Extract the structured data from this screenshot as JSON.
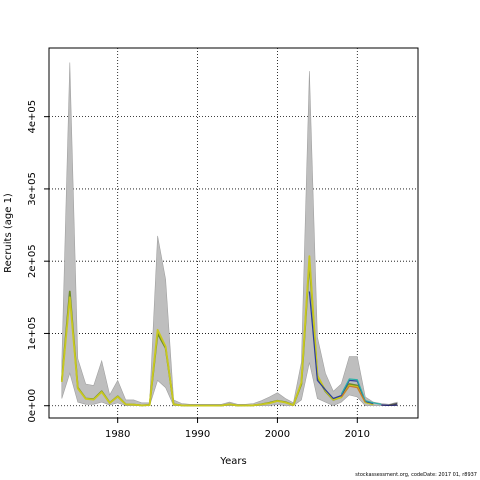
{
  "chart_data": {
    "type": "line",
    "xlabel": "Years",
    "ylabel": "Recruits (age 1)",
    "xlim": [
      1971.4,
      2017.6
    ],
    "ylim": [
      -17000,
      495000
    ],
    "xticks": [
      1980,
      1990,
      2000,
      2010
    ],
    "yticks": [
      0,
      100000,
      200000,
      300000,
      400000
    ],
    "ytick_labels": [
      "0e+00",
      "1e+05",
      "2e+05",
      "3e+05",
      "4e+05"
    ],
    "grid": "dotted",
    "colors": {
      "band": "#bebebe",
      "band_edge": "#a0a0a0",
      "series_blue": "#2a3c9c",
      "series_teal": "#2ab0a8",
      "series_yellow": "#c8c81e",
      "series_olive": "#6e8c28",
      "series_orange": "#c87832",
      "series_darkblue": "#1a1a6e",
      "series_gray": "#505050"
    },
    "band": {
      "x": [
        1973,
        1974,
        1975,
        1976,
        1977,
        1978,
        1979,
        1980,
        1981,
        1982,
        1983,
        1984,
        1985,
        1986,
        1987,
        1988,
        1989,
        1990,
        1991,
        1992,
        1993,
        1994,
        1995,
        1996,
        1997,
        1998,
        1999,
        2000,
        2001,
        2002,
        2003,
        2004,
        2005,
        2006,
        2007,
        2008,
        2009,
        2010,
        2011,
        2012,
        2013,
        2014,
        2015
      ],
      "lower": [
        10000,
        45000,
        5000,
        2000,
        2000,
        5000,
        1000,
        4000,
        0,
        0,
        0,
        0,
        35000,
        25000,
        0,
        0,
        0,
        0,
        0,
        0,
        0,
        0,
        0,
        0,
        0,
        0,
        0,
        2000,
        0,
        0,
        8000,
        60000,
        10000,
        5000,
        0,
        5000,
        15000,
        12000,
        0,
        0,
        0,
        0,
        0
      ],
      "upper": [
        60000,
        475000,
        65000,
        30000,
        28000,
        62000,
        15000,
        35000,
        8000,
        8000,
        4000,
        4000,
        235000,
        175000,
        8000,
        3000,
        2000,
        2000,
        2000,
        2000,
        2000,
        5000,
        2000,
        2000,
        3000,
        7000,
        12000,
        18000,
        10000,
        4000,
        60000,
        463000,
        95000,
        45000,
        20000,
        30000,
        68000,
        68000,
        12000,
        5000,
        3000,
        2000,
        5000
      ]
    },
    "series": [
      {
        "color_key": "series_olive",
        "x": [
          1973,
          1974,
          1975,
          1976,
          1977,
          1978,
          1979,
          1980,
          1981,
          1982,
          1983,
          1984,
          1985,
          1986,
          1987,
          1988,
          1989,
          1990,
          1991,
          1992,
          1993,
          1994,
          1995,
          1996,
          1997,
          1998,
          1999,
          2000,
          2001,
          2002,
          2003,
          2004,
          2005,
          2006,
          2007,
          2008,
          2009,
          2010,
          2011,
          2012
        ],
        "values": [
          35000,
          158000,
          25000,
          10000,
          9000,
          20000,
          4000,
          13000,
          2000,
          1500,
          500,
          1000,
          100000,
          80000,
          2000,
          500,
          300,
          200,
          200,
          200,
          300,
          2000,
          300,
          400,
          600,
          2000,
          4000,
          7000,
          5000,
          1000,
          30000,
          200000,
          40000,
          20000,
          8000,
          12000,
          30000,
          28000,
          5000,
          2000
        ]
      },
      {
        "color_key": "series_yellow",
        "x": [
          1973,
          1974,
          1975,
          1976,
          1977,
          1978,
          1979,
          1980,
          1981,
          1982,
          1983,
          1984,
          1985,
          1986,
          1987,
          1988,
          1989,
          1990,
          1991,
          1992,
          1993,
          1994,
          1995,
          1996,
          1997,
          1998,
          1999,
          2000,
          2001,
          2002,
          2003,
          2004,
          2005,
          2006,
          2007,
          2008,
          2009,
          2010,
          2011,
          2012
        ],
        "values": [
          33000,
          150000,
          24000,
          9500,
          8500,
          19000,
          3800,
          12500,
          1800,
          1400,
          400,
          900,
          105000,
          82000,
          1800,
          400,
          250,
          200,
          200,
          200,
          250,
          1800,
          250,
          350,
          550,
          1800,
          3500,
          6500,
          4500,
          900,
          32000,
          207000,
          42000,
          21000,
          8500,
          11500,
          28000,
          26000,
          4800,
          1800
        ]
      },
      {
        "color_key": "series_blue",
        "x": [
          2004,
          2005,
          2006,
          2007,
          2008,
          2009,
          2010,
          2011,
          2012
        ],
        "values": [
          158000,
          35000,
          22000,
          10000,
          14000,
          35000,
          34000,
          6000,
          3000
        ]
      },
      {
        "color_key": "series_teal",
        "x": [
          2008,
          2009,
          2010,
          2011,
          2012,
          2013
        ],
        "values": [
          16000,
          37000,
          36000,
          7000,
          4000,
          2000
        ]
      },
      {
        "color_key": "series_orange",
        "x": [
          2008,
          2009,
          2010,
          2011
        ],
        "values": [
          12000,
          27000,
          25000,
          5000
        ]
      },
      {
        "color_key": "series_darkblue",
        "x": [
          2013,
          2014,
          2015
        ],
        "values": [
          1000,
          500,
          1000
        ]
      },
      {
        "color_key": "series_gray",
        "x": [
          2014,
          2015
        ],
        "values": [
          1000,
          3000
        ]
      }
    ]
  },
  "footer": {
    "text": "stockassessment.org, codeDate: 2017 01, r8937"
  }
}
